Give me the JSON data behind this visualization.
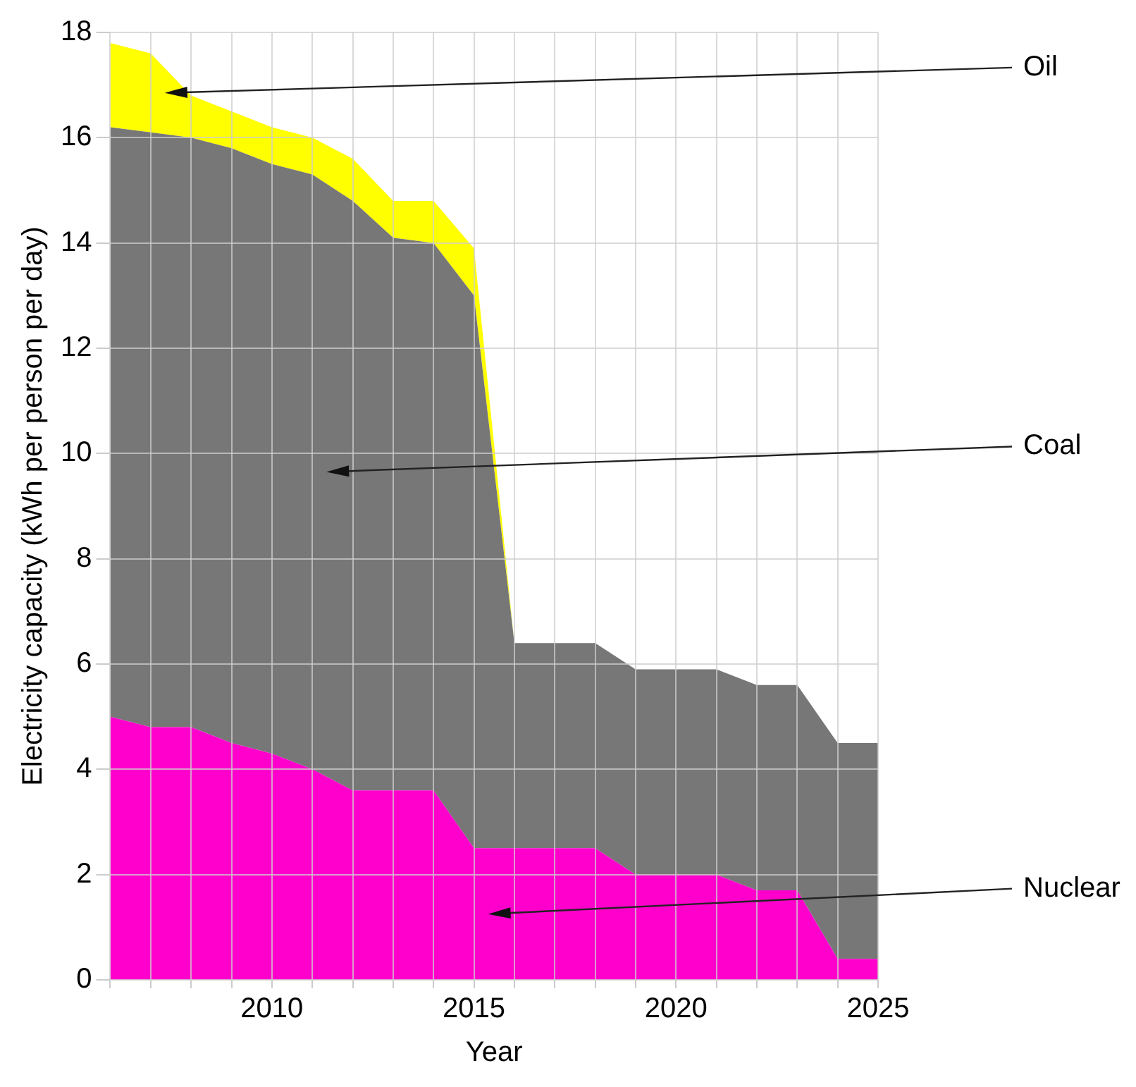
{
  "chart_data": {
    "type": "area",
    "stacked": true,
    "xlabel": "Year",
    "ylabel": "Electricity capacity (kWh per person per day)",
    "x": [
      2006,
      2007,
      2008,
      2009,
      2010,
      2011,
      2012,
      2013,
      2014,
      2015,
      2016,
      2017,
      2018,
      2019,
      2020,
      2021,
      2022,
      2023,
      2024,
      2025
    ],
    "series": [
      {
        "name": "Nuclear",
        "color": "#ff00cc",
        "values": [
          5.0,
          4.8,
          4.8,
          4.5,
          4.3,
          4.0,
          3.6,
          3.6,
          3.6,
          2.5,
          2.5,
          2.5,
          2.5,
          2.0,
          2.0,
          2.0,
          1.7,
          1.7,
          0.4,
          0.4
        ]
      },
      {
        "name": "Coal",
        "color": "#777777",
        "values": [
          11.2,
          11.3,
          11.2,
          11.3,
          11.2,
          11.3,
          11.2,
          10.5,
          10.4,
          10.5,
          3.9,
          3.9,
          3.9,
          3.9,
          3.9,
          3.9,
          3.9,
          3.9,
          4.1,
          4.1
        ]
      },
      {
        "name": "Oil",
        "color": "#ffff00",
        "values": [
          1.6,
          1.5,
          0.8,
          0.7,
          0.7,
          0.7,
          0.8,
          0.7,
          0.8,
          0.9,
          0,
          0,
          0,
          0,
          0,
          0,
          0,
          0,
          0,
          0
        ]
      }
    ],
    "xlim": [
      2006,
      2025
    ],
    "xticks": [
      {
        "value": 2006,
        "label": null
      },
      {
        "value": 2007,
        "label": null
      },
      {
        "value": 2008,
        "label": null
      },
      {
        "value": 2009,
        "label": null
      },
      2010,
      {
        "value": 2011,
        "label": null
      },
      {
        "value": 2012,
        "label": null
      },
      {
        "value": 2013,
        "label": null
      },
      {
        "value": 2014,
        "label": null
      },
      2015,
      {
        "value": 2016,
        "label": null
      },
      {
        "value": 2017,
        "label": null
      },
      {
        "value": 2018,
        "label": null
      },
      {
        "value": 2019,
        "label": null
      },
      2020,
      {
        "value": 2021,
        "label": null
      },
      {
        "value": 2022,
        "label": null
      },
      {
        "value": 2023,
        "label": null
      },
      {
        "value": 2024,
        "label": null
      },
      2025
    ],
    "ylim": [
      0,
      18
    ],
    "yticks": [
      0,
      2,
      4,
      6,
      8,
      10,
      12,
      14,
      16,
      18
    ],
    "grid": true,
    "legend": false
  }
}
